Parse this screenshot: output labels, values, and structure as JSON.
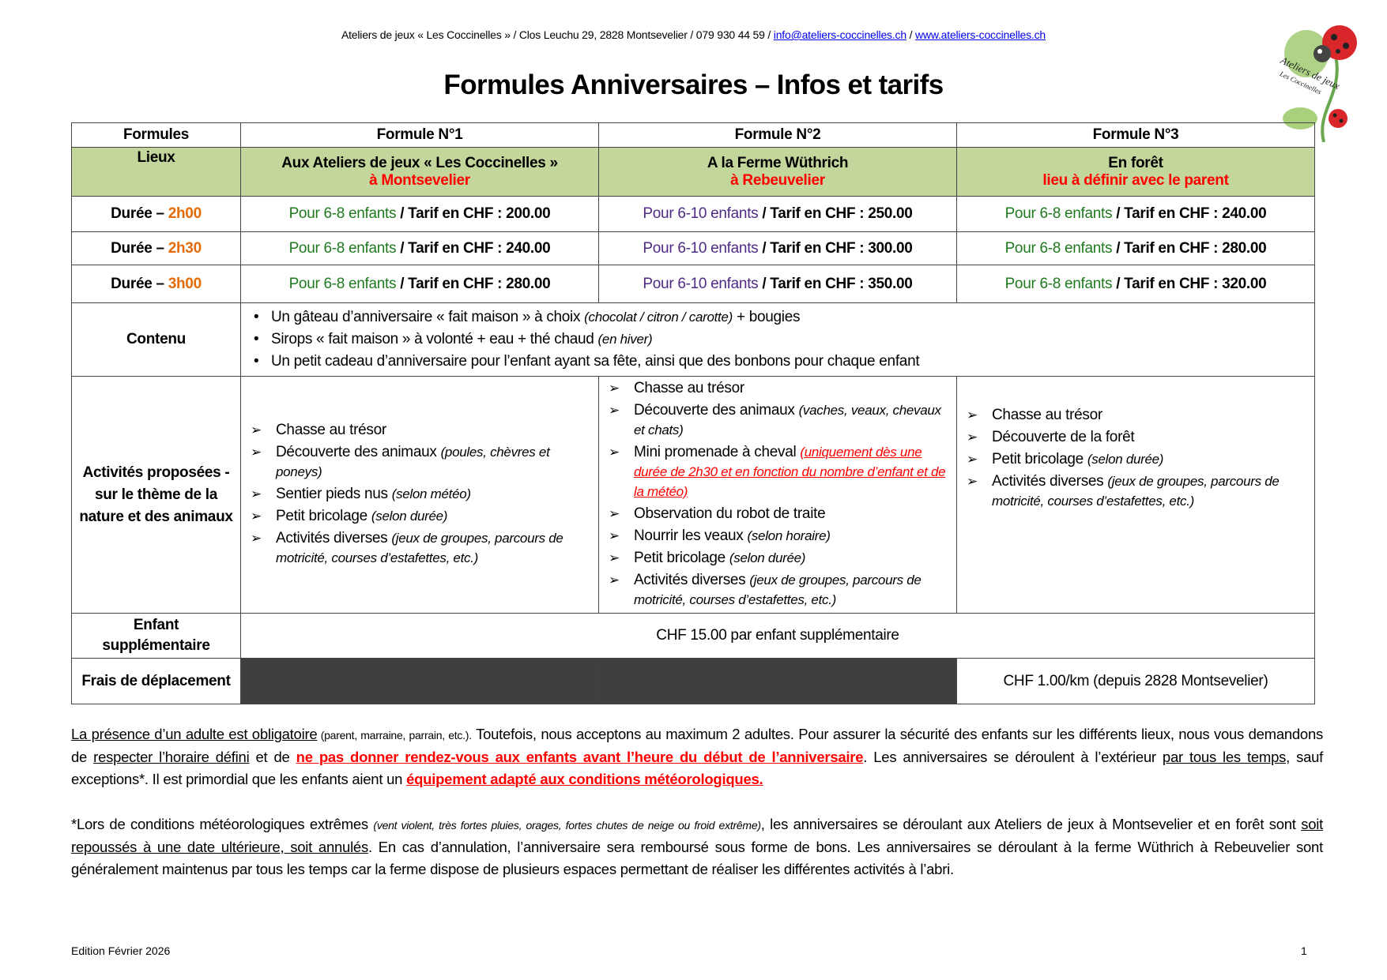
{
  "header": {
    "address": "Ateliers de jeux « Les Coccinelles » / Clos Leuchu 29, 2828 Montsevelier / 079 930 44 59 / ",
    "email": "info@ateliers-coccinelles.ch",
    "sep": " / ",
    "website": "www.ateliers-coccinelles.ch"
  },
  "logo": {
    "line1": "Ateliers de jeux",
    "line2": "Les Coccinelles"
  },
  "title": "Formules Anniversaires – Infos et tarifs",
  "colors": {
    "green_bg": "#c3d69b",
    "red": "#ff0000",
    "orange": "#e36c09",
    "green_text": "#1f7a1f",
    "purple_text": "#4e2a84",
    "dark_cell": "#3f3f3f"
  },
  "table": {
    "headers": [
      "Formules",
      "Formule N°1",
      "Formule N°2",
      "Formule N°3"
    ],
    "lieux": {
      "label": "Lieux",
      "places": [
        {
          "name": "Aux Ateliers de jeux « Les Coccinelles »",
          "sub": "à Montsevelier"
        },
        {
          "name": "A la Ferme Wüthrich",
          "sub": "à Rebeuvelier"
        },
        {
          "name": "En forêt",
          "sub": "lieu à définir avec le parent"
        }
      ]
    },
    "durations": [
      {
        "label": "Durée – ",
        "time": "2h00",
        "cells": [
          {
            "kids": "Pour 6-8 enfants",
            "price": " / Tarif en CHF : 200.00"
          },
          {
            "kids": "Pour 6-10 enfants",
            "price": " / Tarif en CHF : 250.00"
          },
          {
            "kids": "Pour 6-8 enfants",
            "price": " / Tarif en CHF : 240.00"
          }
        ]
      },
      {
        "label": "Durée – ",
        "time": "2h30",
        "cells": [
          {
            "kids": "Pour 6-8 enfants",
            "price": " / Tarif en CHF : 240.00"
          },
          {
            "kids": "Pour 6-10 enfants",
            "price": " / Tarif en CHF : 300.00"
          },
          {
            "kids": "Pour 6-8 enfants",
            "price": " / Tarif en CHF : 280.00"
          }
        ]
      },
      {
        "label": "Durée – ",
        "time": "3h00",
        "cells": [
          {
            "kids": "Pour 6-8 enfants",
            "price": " / Tarif en CHF : 280.00"
          },
          {
            "kids": "Pour 6-10 enfants",
            "price": " / Tarif en CHF : 350.00"
          },
          {
            "kids": "Pour 6-8 enfants",
            "price": " / Tarif en CHF : 320.00"
          }
        ]
      }
    ],
    "contenu": {
      "label": "Contenu",
      "items": [
        {
          "text": "Un gâteau d’anniversaire « fait maison » à choix ",
          "note": "(chocolat / citron / carotte)",
          "after": " + bougies"
        },
        {
          "text": "Sirops « fait maison » à volonté + eau + thé chaud ",
          "note": "(en hiver)",
          "after": ""
        },
        {
          "text": "Un petit cadeau d’anniversaire pour l’enfant ayant sa fête, ainsi que des bonbons pour chaque enfant",
          "note": "",
          "after": ""
        }
      ]
    },
    "activites": {
      "label": "Activités proposées - sur le thème de la nature et des animaux",
      "f1": [
        {
          "text": "Chasse au trésor",
          "note": ""
        },
        {
          "text": "Découverte des animaux ",
          "note": "(poules, chèvres et poneys)"
        },
        {
          "text": "Sentier pieds nus ",
          "note": "(selon météo)"
        },
        {
          "text": "Petit bricolage ",
          "note": "(selon durée)"
        },
        {
          "text": "Activités diverses ",
          "note": "(jeux de groupes, parcours de motricité, courses d’estafettes, etc.)"
        }
      ],
      "f2": [
        {
          "text": "Chasse au trésor",
          "note": ""
        },
        {
          "text": "Découverte des animaux ",
          "note": "(vaches, veaux, chevaux et chats)"
        },
        {
          "text": "Mini promenade à cheval ",
          "note_red": "(uniquement dès une durée de 2h30 et en fonction du nombre d’enfant et de la météo)"
        },
        {
          "text": "Observation du robot de traite",
          "note": ""
        },
        {
          "text": "Nourrir les veaux ",
          "note": "(selon horaire)"
        },
        {
          "text": "Petit bricolage ",
          "note": "(selon durée)"
        },
        {
          "text": "Activités diverses ",
          "note": "(jeux de groupes, parcours de motricité, courses d’estafettes, etc.)"
        }
      ],
      "f3": [
        {
          "text": "Chasse au trésor",
          "note": ""
        },
        {
          "text": "Découverte de la forêt",
          "note": ""
        },
        {
          "text": "Petit bricolage ",
          "note": "(selon durée)"
        },
        {
          "text": "Activités diverses ",
          "note": "(jeux de groupes, parcours de motricité, courses d’estafettes, etc.)"
        }
      ]
    },
    "extra_child": {
      "label": "Enfant supplémentaire",
      "value": "CHF 15.00 par enfant supplémentaire"
    },
    "travel": {
      "label": "Frais de déplacement",
      "value": "CHF 1.00/km (depuis 2828 Montsevelier)"
    }
  },
  "notes": {
    "p1": [
      "La présence d’un adulte est obligatoire",
      " (parent, marraine, parrain, etc.).",
      " Toutefois, nous acceptons au maximum 2 adultes. Pour assurer la sécurité des enfants sur les différents lieux, nous vous demandons de ",
      "respecter l’horaire défini",
      " et de ",
      "ne pas donner rendez-vous aux enfants avant l’heure du début de l’anniversaire",
      ".  Les anniversaires se déroulent à l’extérieur ",
      "par tous les temps",
      ", sauf exceptions*. Il est primordial que les enfants aient un ",
      "équipement adapté aux conditions météorologiques."
    ],
    "p2": [
      "*Lors de conditions météorologiques extrêmes ",
      "(vent violent, très fortes pluies, orages, fortes chutes de neige ou froid extrême)",
      ", les anniversaires se déroulant aux Ateliers de jeux à Montsevelier et en forêt sont ",
      "soit repoussés à une date ultérieure, soit annulés",
      ". En cas d’annulation, l’anniversaire sera remboursé sous forme de bons. Les anniversaires se déroulant à la ferme Wüthrich à Rebeuvelier sont généralement maintenus par tous les temps car la ferme dispose de plusieurs espaces permettant de réaliser les différentes activités à l’abri."
    ]
  },
  "footer": {
    "edition": "Edition Février 2026",
    "page": "1"
  }
}
